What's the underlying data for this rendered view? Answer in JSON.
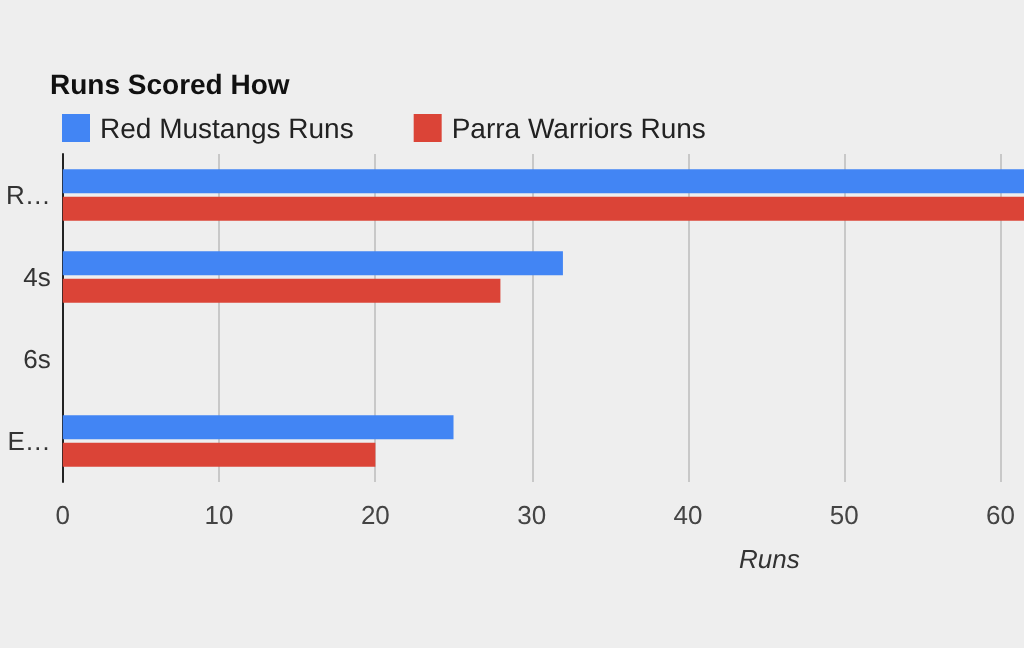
{
  "chart_data": {
    "type": "bar",
    "orientation": "horizontal",
    "title": "Runs Scored How",
    "xlabel": "Runs",
    "categories": [
      "R…",
      "4s",
      "6s",
      "E…"
    ],
    "series": [
      {
        "name": "Red Mustangs Runs",
        "color": "#4285f4",
        "values": [
          61.5,
          32,
          0,
          25
        ]
      },
      {
        "name": "Parra Warriors Runs",
        "color": "#db4437",
        "values": [
          61.5,
          28,
          0,
          20
        ]
      }
    ],
    "xlim": [
      0,
      61.5
    ],
    "xticks": [
      0,
      10,
      20,
      30,
      40,
      50,
      60
    ],
    "grid": "x",
    "legend": "top left"
  }
}
